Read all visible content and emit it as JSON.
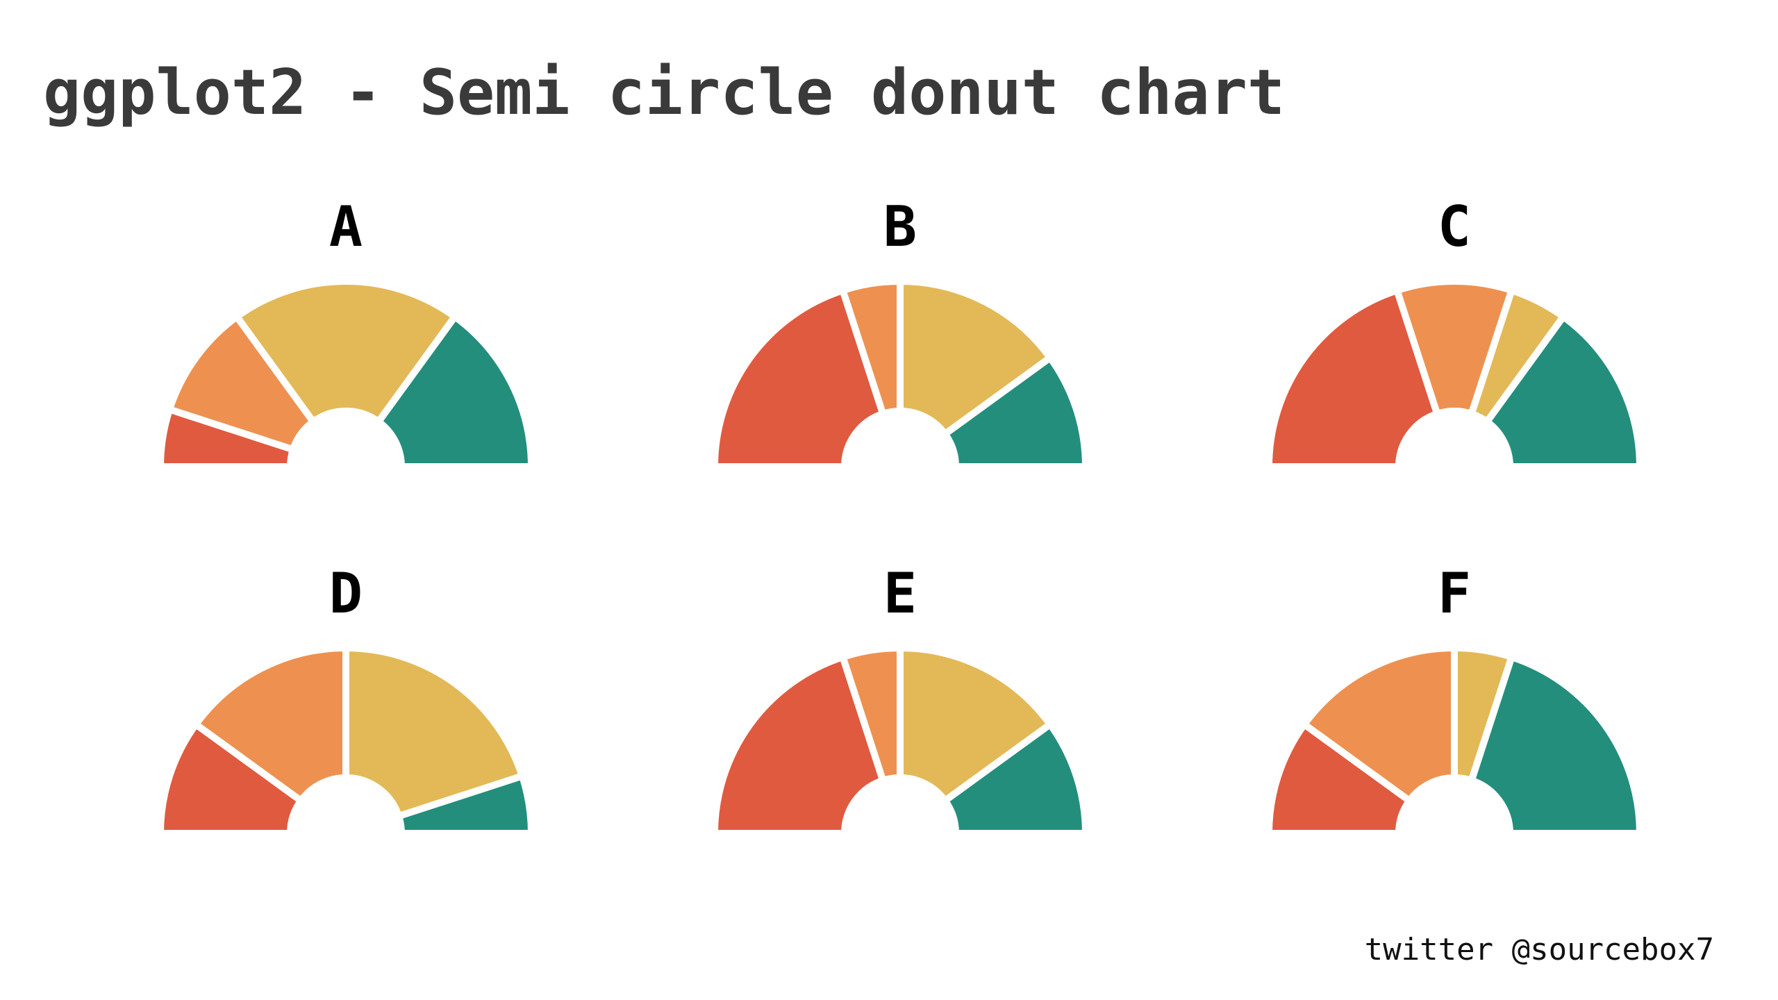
{
  "title": "ggplot2 - Semi circle donut chart",
  "caption": "twitter @sourcebox7",
  "colors": {
    "red": "#e05a40",
    "orange": "#ee9150",
    "yellow": "#e3b957",
    "teal": "#248e7c"
  },
  "chart_data": [
    {
      "type": "semi-donut",
      "label": "A",
      "slices": [
        {
          "color": "#e05a40",
          "value": 10
        },
        {
          "color": "#ee9150",
          "value": 20
        },
        {
          "color": "#e3b957",
          "value": 40
        },
        {
          "color": "#248e7c",
          "value": 30
        }
      ]
    },
    {
      "type": "semi-donut",
      "label": "B",
      "slices": [
        {
          "color": "#e05a40",
          "value": 40
        },
        {
          "color": "#ee9150",
          "value": 10
        },
        {
          "color": "#e3b957",
          "value": 30
        },
        {
          "color": "#248e7c",
          "value": 20
        }
      ]
    },
    {
      "type": "semi-donut",
      "label": "C",
      "slices": [
        {
          "color": "#e05a40",
          "value": 40
        },
        {
          "color": "#ee9150",
          "value": 20
        },
        {
          "color": "#e3b957",
          "value": 10
        },
        {
          "color": "#248e7c",
          "value": 30
        }
      ]
    },
    {
      "type": "semi-donut",
      "label": "D",
      "slices": [
        {
          "color": "#e05a40",
          "value": 20
        },
        {
          "color": "#ee9150",
          "value": 30
        },
        {
          "color": "#e3b957",
          "value": 40
        },
        {
          "color": "#248e7c",
          "value": 10
        }
      ]
    },
    {
      "type": "semi-donut",
      "label": "E",
      "slices": [
        {
          "color": "#e05a40",
          "value": 40
        },
        {
          "color": "#ee9150",
          "value": 10
        },
        {
          "color": "#e3b957",
          "value": 30
        },
        {
          "color": "#248e7c",
          "value": 20
        }
      ]
    },
    {
      "type": "semi-donut",
      "label": "F",
      "slices": [
        {
          "color": "#e05a40",
          "value": 20
        },
        {
          "color": "#ee9150",
          "value": 30
        },
        {
          "color": "#e3b957",
          "value": 10
        },
        {
          "color": "#248e7c",
          "value": 40
        }
      ]
    }
  ]
}
